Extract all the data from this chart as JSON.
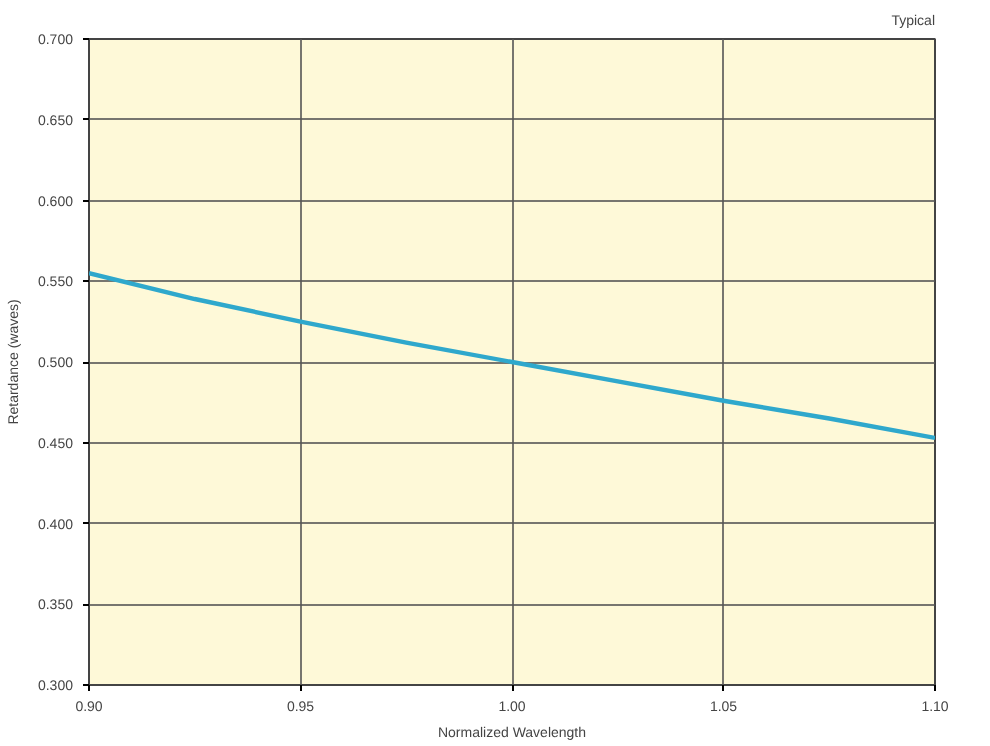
{
  "chart_data": {
    "type": "line",
    "xlabel": "Normalized Wavelength",
    "ylabel": "Retardance (waves)",
    "annotations": [
      "Typical"
    ],
    "x": [
      0.9,
      0.925,
      0.95,
      0.975,
      1.0,
      1.025,
      1.05,
      1.075,
      1.1
    ],
    "series": [
      {
        "color": "#2fa8cc",
        "values": [
          0.555,
          0.539,
          0.525,
          0.512,
          0.5,
          0.488,
          0.476,
          0.465,
          0.453
        ]
      }
    ],
    "xlim": [
      0.9,
      1.1
    ],
    "ylim": [
      0.3,
      0.7
    ],
    "xticks": [
      {
        "value": 0.9,
        "label": "0.90"
      },
      {
        "value": 0.95,
        "label": "0.95"
      },
      {
        "value": 1.0,
        "label": "1.00"
      },
      {
        "value": 1.05,
        "label": "1.05"
      },
      {
        "value": 1.1,
        "label": "1.10"
      }
    ],
    "yticks": [
      {
        "value": 0.3,
        "label": "0.300"
      },
      {
        "value": 0.35,
        "label": "0.350"
      },
      {
        "value": 0.4,
        "label": "0.400"
      },
      {
        "value": 0.45,
        "label": "0.450"
      },
      {
        "value": 0.5,
        "label": "0.500"
      },
      {
        "value": 0.55,
        "label": "0.550"
      },
      {
        "value": 0.6,
        "label": "0.600"
      },
      {
        "value": 0.65,
        "label": "0.650"
      },
      {
        "value": 0.7,
        "label": "0.700"
      }
    ],
    "grid": true,
    "line_style": "solid",
    "marker": "none"
  }
}
